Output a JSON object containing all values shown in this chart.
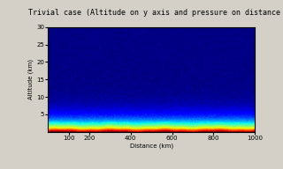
{
  "title": "Trivial case (Altitude on y axis and pressure on distance on x axis)",
  "xlabel": "Distance (km)",
  "ylabel": "Altitude (km)",
  "xlim": [
    0,
    1000
  ],
  "ylim": [
    0,
    30
  ],
  "x_ticks": [
    100,
    200,
    400,
    600,
    800,
    1000
  ],
  "y_ticks": [
    5,
    10,
    15,
    20,
    25,
    30
  ],
  "nx": 300,
  "ny": 150,
  "fig_bg": "#d4d0c8",
  "panel_bg": "#ffffff",
  "title_fontsize": 6,
  "axis_fontsize": 5,
  "tick_fontsize": 5,
  "cmap": "jet",
  "vmin": 0.0,
  "vmax": 1.0,
  "surface_thickness": 0.12,
  "noise_scale": 0.015
}
